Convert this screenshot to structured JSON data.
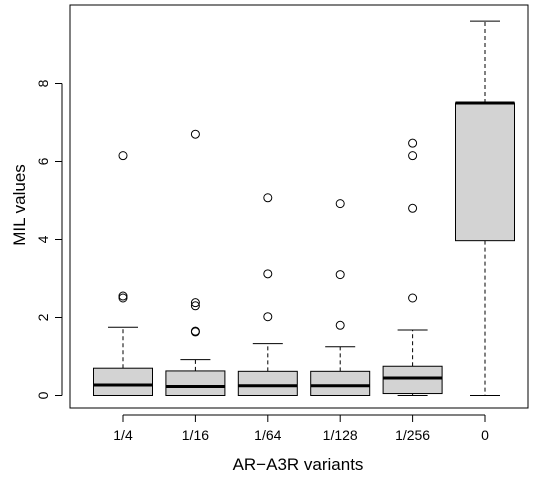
{
  "chart_data": {
    "type": "box",
    "title": "",
    "xlabel": "AR−A3R variants",
    "ylabel": "MIL values",
    "ylim": [
      -0.6,
      9.6
    ],
    "yticks": [
      0,
      2,
      4,
      6,
      8
    ],
    "grid": false,
    "legend": "none",
    "box_fill": "#d3d3d3",
    "categories": [
      "1/4",
      "1/16",
      "1/64",
      "1/128",
      "1/256",
      "0"
    ],
    "boxes": [
      {
        "label": "1/4",
        "whisker_low": 0.0,
        "q1": 0.0,
        "median": 0.27,
        "q3": 0.7,
        "whisker_high": 1.75,
        "outliers": [
          2.5,
          2.55,
          6.15
        ]
      },
      {
        "label": "1/16",
        "whisker_low": 0.0,
        "q1": 0.0,
        "median": 0.23,
        "q3": 0.63,
        "whisker_high": 0.92,
        "outliers": [
          1.63,
          1.65,
          2.3,
          2.38,
          6.7
        ]
      },
      {
        "label": "1/64",
        "whisker_low": 0.0,
        "q1": 0.0,
        "median": 0.25,
        "q3": 0.62,
        "whisker_high": 1.33,
        "outliers": [
          2.02,
          3.12,
          5.07
        ]
      },
      {
        "label": "1/128",
        "whisker_low": 0.0,
        "q1": 0.0,
        "median": 0.25,
        "q3": 0.62,
        "whisker_high": 1.25,
        "outliers": [
          1.8,
          3.1,
          4.92
        ]
      },
      {
        "label": "1/256",
        "whisker_low": 0.0,
        "q1": 0.05,
        "median": 0.45,
        "q3": 0.75,
        "whisker_high": 1.68,
        "outliers": [
          2.5,
          4.8,
          6.15,
          6.47
        ]
      },
      {
        "label": "0",
        "whisker_low": 0.0,
        "q1": 3.97,
        "median": 7.5,
        "q3": 7.5,
        "whisker_high": 9.6,
        "outliers": []
      }
    ]
  }
}
